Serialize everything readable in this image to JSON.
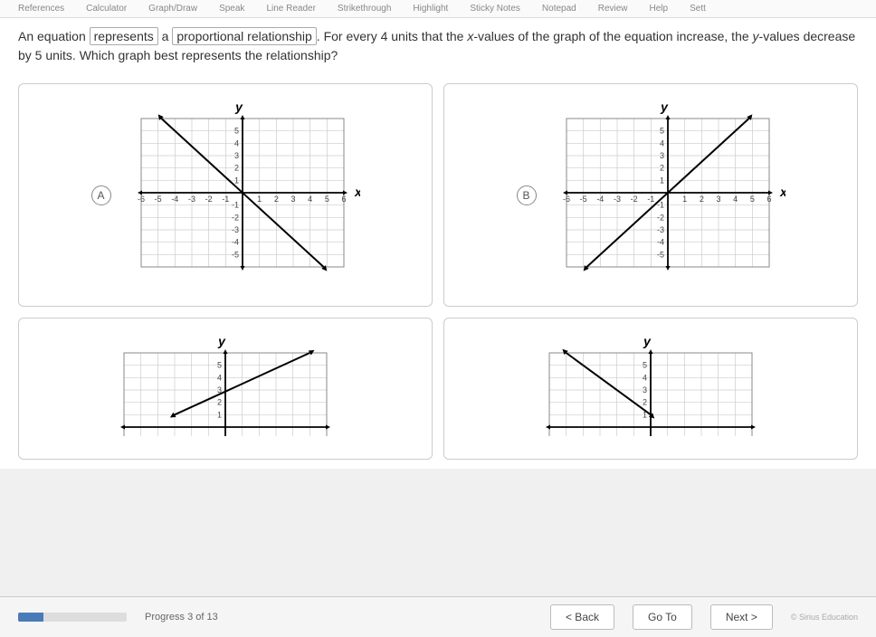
{
  "toolbar": {
    "items": [
      "References",
      "Calculator",
      "Graph/Draw",
      "Speak",
      "Line Reader",
      "Strikethrough",
      "Highlight",
      "Sticky Notes",
      "Notepad",
      "Review",
      "Help",
      "Sett"
    ]
  },
  "question": {
    "part1": "An equation ",
    "box1": "represents",
    "part2": " a ",
    "box2": "proportional relationship",
    "part3": ". For every 4 units that the ",
    "xvar": "x",
    "part4": "-values of the graph of the equation increase, the ",
    "yvar": "y",
    "part5": "-values decrease by 5 units. Which graph best represents the relationship?"
  },
  "options": {
    "a": {
      "label": "A"
    },
    "b": {
      "label": "B"
    },
    "c": {
      "label": ""
    },
    "d": {
      "label": ""
    }
  },
  "graphA": {
    "type": "line",
    "xlim": [
      -6,
      6
    ],
    "ylim": [
      -6,
      6
    ],
    "xticks": [
      -6,
      -5,
      -4,
      -3,
      -2,
      -1,
      1,
      2,
      3,
      4,
      5,
      6
    ],
    "yticks": [
      -5,
      -4,
      -3,
      -2,
      -1,
      1,
      2,
      3,
      4,
      5
    ],
    "grid_color": "#cccccc",
    "axis_color": "#000000",
    "line_color": "#000000",
    "line_width": 2,
    "points": [
      [
        -4.8,
        6
      ],
      [
        4.8,
        -6
      ]
    ],
    "arrows": true,
    "xlabel": "x",
    "ylabel": "y",
    "label_fontsize": 14,
    "tick_fontsize": 9
  },
  "graphB": {
    "type": "line",
    "xlim": [
      -6,
      6
    ],
    "ylim": [
      -6,
      6
    ],
    "xticks": [
      -6,
      -5,
      -4,
      -3,
      -2,
      -1,
      1,
      2,
      3,
      4,
      5,
      6
    ],
    "yticks": [
      -5,
      -4,
      -3,
      -2,
      -1,
      1,
      2,
      3,
      4,
      5
    ],
    "grid_color": "#cccccc",
    "axis_color": "#000000",
    "line_color": "#000000",
    "line_width": 2,
    "points": [
      [
        -4.8,
        -6
      ],
      [
        4.8,
        6
      ]
    ],
    "arrows": true,
    "xlabel": "x",
    "ylabel": "y",
    "label_fontsize": 14,
    "tick_fontsize": 9
  },
  "graphC": {
    "type": "line",
    "xlim": [
      -6,
      6
    ],
    "ylim": [
      -6,
      6
    ],
    "visible_ylim": [
      1,
      6
    ],
    "grid_color": "#cccccc",
    "axis_color": "#000000",
    "line_color": "#000000",
    "line_width": 2,
    "points": [
      [
        -3,
        1
      ],
      [
        5,
        6
      ]
    ],
    "arrows": true,
    "ylabel": "y",
    "label_fontsize": 14,
    "tick_fontsize": 9,
    "yticks_visible": [
      1,
      2,
      3,
      4,
      5
    ]
  },
  "graphD": {
    "type": "line",
    "xlim": [
      -6,
      6
    ],
    "ylim": [
      -6,
      6
    ],
    "visible_ylim": [
      1,
      6
    ],
    "grid_color": "#cccccc",
    "axis_color": "#000000",
    "line_color": "#000000",
    "line_width": 2,
    "points": [
      [
        -5,
        6
      ],
      [
        0,
        1
      ]
    ],
    "arrows": true,
    "ylabel": "y",
    "label_fontsize": 14,
    "tick_fontsize": 9,
    "yticks_visible": [
      1,
      2,
      3,
      4,
      5
    ]
  },
  "footer": {
    "progress_text": "Progress 3 of 13",
    "progress_pct": 23,
    "back": "< Back",
    "goto": "Go To",
    "next": "Next >",
    "copyright": "© Sirius Education"
  }
}
